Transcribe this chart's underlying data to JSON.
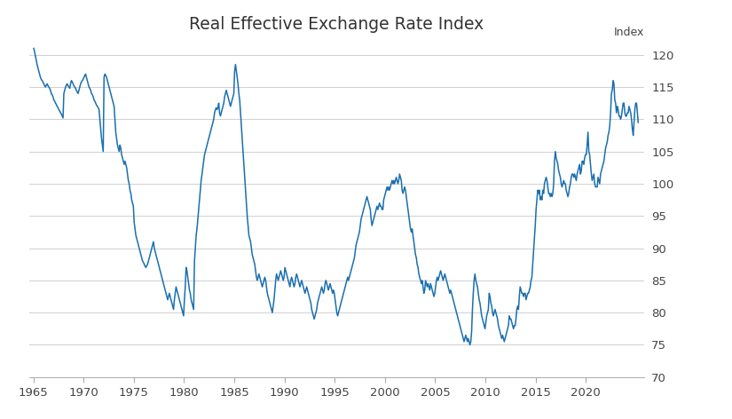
{
  "title": "Real Effective Exchange Rate Index",
  "ylabel": "Index",
  "line_color": "#1a6faf",
  "background_color": "#ffffff",
  "grid_color": "#d0d0d0",
  "ylim": [
    70,
    122
  ],
  "yticks": [
    70,
    75,
    80,
    85,
    90,
    95,
    100,
    105,
    110,
    115,
    120
  ],
  "xticks": [
    1965,
    1970,
    1975,
    1980,
    1985,
    1990,
    1995,
    2000,
    2005,
    2010,
    2015,
    2020
  ],
  "figsize": [
    8.25,
    4.72
  ],
  "dpi": 100,
  "data": {
    "1965-01": 121.0,
    "1965-02": 120.5,
    "1965-03": 119.8,
    "1965-04": 119.2,
    "1965-05": 118.5,
    "1965-06": 118.0,
    "1965-07": 117.5,
    "1965-08": 117.0,
    "1965-09": 116.5,
    "1965-10": 116.2,
    "1965-11": 116.0,
    "1965-12": 115.8,
    "1966-01": 115.5,
    "1966-02": 115.2,
    "1966-03": 115.0,
    "1966-04": 115.3,
    "1966-05": 115.5,
    "1966-06": 115.2,
    "1966-07": 115.0,
    "1966-08": 114.8,
    "1966-09": 114.5,
    "1966-10": 114.0,
    "1966-11": 113.8,
    "1966-12": 113.5,
    "1967-01": 113.0,
    "1967-02": 112.8,
    "1967-03": 112.5,
    "1967-04": 112.3,
    "1967-05": 112.0,
    "1967-06": 111.8,
    "1967-07": 111.5,
    "1967-08": 111.3,
    "1967-09": 111.0,
    "1967-10": 110.8,
    "1967-11": 110.5,
    "1967-12": 110.2,
    "1968-01": 114.0,
    "1968-02": 114.5,
    "1968-03": 115.0,
    "1968-04": 115.3,
    "1968-05": 115.5,
    "1968-06": 115.2,
    "1968-07": 115.0,
    "1968-08": 114.8,
    "1968-09": 115.5,
    "1968-10": 116.0,
    "1968-11": 115.8,
    "1968-12": 115.5,
    "1969-01": 115.2,
    "1969-02": 115.0,
    "1969-03": 114.8,
    "1969-04": 114.5,
    "1969-05": 114.2,
    "1969-06": 114.0,
    "1969-07": 114.5,
    "1969-08": 115.0,
    "1969-09": 115.5,
    "1969-10": 115.8,
    "1969-11": 116.0,
    "1969-12": 116.2,
    "1970-01": 116.5,
    "1970-02": 116.8,
    "1970-03": 117.0,
    "1970-04": 116.5,
    "1970-05": 116.0,
    "1970-06": 115.5,
    "1970-07": 115.0,
    "1970-08": 114.8,
    "1970-09": 114.5,
    "1970-10": 114.0,
    "1970-11": 113.8,
    "1970-12": 113.5,
    "1971-01": 113.0,
    "1971-02": 112.8,
    "1971-03": 112.5,
    "1971-04": 112.2,
    "1971-05": 112.0,
    "1971-06": 111.8,
    "1971-07": 111.5,
    "1971-08": 110.0,
    "1971-09": 108.5,
    "1971-10": 107.0,
    "1971-11": 106.0,
    "1971-12": 105.0,
    "1972-01": 116.5,
    "1972-02": 117.0,
    "1972-03": 116.8,
    "1972-04": 116.5,
    "1972-05": 116.0,
    "1972-06": 115.5,
    "1972-07": 115.0,
    "1972-08": 114.5,
    "1972-09": 114.0,
    "1972-10": 113.5,
    "1972-11": 113.0,
    "1972-12": 112.5,
    "1973-01": 112.0,
    "1973-02": 110.0,
    "1973-03": 108.0,
    "1973-04": 107.0,
    "1973-05": 106.0,
    "1973-06": 105.5,
    "1973-07": 105.0,
    "1973-08": 106.0,
    "1973-09": 105.5,
    "1973-10": 104.5,
    "1973-11": 104.0,
    "1973-12": 103.5,
    "1974-01": 103.0,
    "1974-02": 103.5,
    "1974-03": 103.0,
    "1974-04": 102.5,
    "1974-05": 101.5,
    "1974-06": 100.5,
    "1974-07": 100.0,
    "1974-08": 99.0,
    "1974-09": 98.5,
    "1974-10": 97.5,
    "1974-11": 97.0,
    "1974-12": 96.5,
    "1975-01": 94.0,
    "1975-02": 93.0,
    "1975-03": 92.0,
    "1975-04": 91.5,
    "1975-05": 91.0,
    "1975-06": 90.5,
    "1975-07": 90.0,
    "1975-08": 89.5,
    "1975-09": 89.0,
    "1975-10": 88.5,
    "1975-11": 88.0,
    "1975-12": 87.8,
    "1976-01": 87.5,
    "1976-02": 87.2,
    "1976-03": 87.0,
    "1976-04": 87.3,
    "1976-05": 87.5,
    "1976-06": 88.0,
    "1976-07": 88.5,
    "1976-08": 89.0,
    "1976-09": 89.5,
    "1976-10": 90.0,
    "1976-11": 90.5,
    "1976-12": 91.0,
    "1977-01": 90.0,
    "1977-02": 89.5,
    "1977-03": 89.0,
    "1977-04": 88.5,
    "1977-05": 88.0,
    "1977-06": 87.5,
    "1977-07": 87.0,
    "1977-08": 86.5,
    "1977-09": 86.0,
    "1977-10": 85.5,
    "1977-11": 85.0,
    "1977-12": 84.5,
    "1978-01": 84.0,
    "1978-02": 83.5,
    "1978-03": 83.0,
    "1978-04": 82.5,
    "1978-05": 82.0,
    "1978-06": 82.5,
    "1978-07": 83.0,
    "1978-08": 82.5,
    "1978-09": 82.0,
    "1978-10": 81.5,
    "1978-11": 81.0,
    "1978-12": 80.5,
    "1979-01": 82.0,
    "1979-02": 83.0,
    "1979-03": 84.0,
    "1979-04": 83.5,
    "1979-05": 83.0,
    "1979-06": 82.5,
    "1979-07": 82.0,
    "1979-08": 81.5,
    "1979-09": 81.0,
    "1979-10": 80.5,
    "1979-11": 80.0,
    "1979-12": 79.5,
    "1980-01": 82.0,
    "1980-02": 84.0,
    "1980-03": 87.0,
    "1980-04": 86.5,
    "1980-05": 85.5,
    "1980-06": 84.5,
    "1980-07": 83.5,
    "1980-08": 83.0,
    "1980-09": 82.0,
    "1980-10": 81.5,
    "1980-11": 81.0,
    "1980-12": 80.5,
    "1981-01": 88.0,
    "1981-02": 90.0,
    "1981-03": 92.0,
    "1981-04": 93.0,
    "1981-05": 94.5,
    "1981-06": 96.0,
    "1981-07": 97.5,
    "1981-08": 99.0,
    "1981-09": 100.5,
    "1981-10": 101.5,
    "1981-11": 102.5,
    "1981-12": 103.5,
    "1982-01": 104.5,
    "1982-02": 105.0,
    "1982-03": 105.5,
    "1982-04": 106.0,
    "1982-05": 106.5,
    "1982-06": 107.0,
    "1982-07": 107.5,
    "1982-08": 108.0,
    "1982-09": 108.5,
    "1982-10": 109.0,
    "1982-11": 109.5,
    "1982-12": 110.0,
    "1983-01": 111.0,
    "1983-02": 111.5,
    "1983-03": 111.8,
    "1983-04": 111.5,
    "1983-05": 111.8,
    "1983-06": 112.5,
    "1983-07": 111.0,
    "1983-08": 110.5,
    "1983-09": 111.0,
    "1983-10": 111.5,
    "1983-11": 112.0,
    "1983-12": 112.5,
    "1984-01": 113.5,
    "1984-02": 114.0,
    "1984-03": 114.5,
    "1984-04": 114.0,
    "1984-05": 113.5,
    "1984-06": 113.0,
    "1984-07": 112.5,
    "1984-08": 112.0,
    "1984-09": 112.5,
    "1984-10": 113.0,
    "1984-11": 113.5,
    "1984-12": 114.0,
    "1985-01": 117.5,
    "1985-02": 118.5,
    "1985-03": 117.5,
    "1985-04": 116.5,
    "1985-05": 115.5,
    "1985-06": 114.0,
    "1985-07": 113.0,
    "1985-08": 111.0,
    "1985-09": 109.0,
    "1985-10": 107.0,
    "1985-11": 105.0,
    "1985-12": 103.0,
    "1986-01": 101.0,
    "1986-02": 99.0,
    "1986-03": 97.0,
    "1986-04": 95.0,
    "1986-05": 93.5,
    "1986-06": 92.0,
    "1986-07": 91.5,
    "1986-08": 91.0,
    "1986-09": 90.0,
    "1986-10": 89.0,
    "1986-11": 88.5,
    "1986-12": 88.0,
    "1987-01": 87.5,
    "1987-02": 86.5,
    "1987-03": 85.5,
    "1987-04": 85.0,
    "1987-05": 85.5,
    "1987-06": 86.0,
    "1987-07": 85.5,
    "1987-08": 85.0,
    "1987-09": 84.5,
    "1987-10": 84.0,
    "1987-11": 84.5,
    "1987-12": 85.0,
    "1988-01": 85.5,
    "1988-02": 85.0,
    "1988-03": 84.0,
    "1988-04": 83.0,
    "1988-05": 82.5,
    "1988-06": 82.0,
    "1988-07": 81.5,
    "1988-08": 81.0,
    "1988-09": 80.5,
    "1988-10": 80.0,
    "1988-11": 81.0,
    "1988-12": 82.0,
    "1989-01": 83.5,
    "1989-02": 85.0,
    "1989-03": 86.0,
    "1989-04": 85.5,
    "1989-05": 85.0,
    "1989-06": 85.5,
    "1989-07": 86.0,
    "1989-08": 86.5,
    "1989-09": 86.0,
    "1989-10": 85.5,
    "1989-11": 85.0,
    "1989-12": 85.5,
    "1990-01": 87.0,
    "1990-02": 86.5,
    "1990-03": 86.0,
    "1990-04": 85.5,
    "1990-05": 85.0,
    "1990-06": 84.5,
    "1990-07": 84.0,
    "1990-08": 85.0,
    "1990-09": 85.5,
    "1990-10": 85.0,
    "1990-11": 84.5,
    "1990-12": 84.0,
    "1991-01": 84.5,
    "1991-02": 85.5,
    "1991-03": 86.0,
    "1991-04": 85.5,
    "1991-05": 85.0,
    "1991-06": 84.5,
    "1991-07": 84.0,
    "1991-08": 84.5,
    "1991-09": 85.0,
    "1991-10": 84.5,
    "1991-11": 84.0,
    "1991-12": 83.5,
    "1992-01": 83.0,
    "1992-02": 83.5,
    "1992-03": 84.0,
    "1992-04": 83.5,
    "1992-05": 83.0,
    "1992-06": 82.5,
    "1992-07": 82.0,
    "1992-08": 81.5,
    "1992-09": 80.5,
    "1992-10": 80.0,
    "1992-11": 79.5,
    "1992-12": 79.0,
    "1993-01": 79.5,
    "1993-02": 80.0,
    "1993-03": 80.5,
    "1993-04": 81.5,
    "1993-05": 82.0,
    "1993-06": 82.5,
    "1993-07": 83.0,
    "1993-08": 83.5,
    "1993-09": 84.0,
    "1993-10": 83.5,
    "1993-11": 83.0,
    "1993-12": 83.5,
    "1994-01": 84.5,
    "1994-02": 85.0,
    "1994-03": 84.5,
    "1994-04": 84.0,
    "1994-05": 83.5,
    "1994-06": 84.0,
    "1994-07": 84.5,
    "1994-08": 84.0,
    "1994-09": 83.5,
    "1994-10": 83.0,
    "1994-11": 83.5,
    "1994-12": 83.0,
    "1995-01": 82.0,
    "1995-02": 81.0,
    "1995-03": 80.0,
    "1995-04": 79.5,
    "1995-05": 80.0,
    "1995-06": 80.5,
    "1995-07": 81.0,
    "1995-08": 81.5,
    "1995-09": 82.0,
    "1995-10": 82.5,
    "1995-11": 83.0,
    "1995-12": 83.5,
    "1996-01": 84.0,
    "1996-02": 84.5,
    "1996-03": 85.0,
    "1996-04": 85.5,
    "1996-05": 85.0,
    "1996-06": 85.5,
    "1996-07": 86.0,
    "1996-08": 86.5,
    "1996-09": 87.0,
    "1996-10": 87.5,
    "1996-11": 88.0,
    "1996-12": 88.5,
    "1997-01": 89.5,
    "1997-02": 90.5,
    "1997-03": 91.0,
    "1997-04": 91.5,
    "1997-05": 92.0,
    "1997-06": 92.5,
    "1997-07": 93.5,
    "1997-08": 94.5,
    "1997-09": 95.0,
    "1997-10": 95.5,
    "1997-11": 96.0,
    "1997-12": 96.5,
    "1998-01": 97.0,
    "1998-02": 97.5,
    "1998-03": 98.0,
    "1998-04": 97.5,
    "1998-05": 97.0,
    "1998-06": 96.5,
    "1998-07": 96.0,
    "1998-08": 94.5,
    "1998-09": 93.5,
    "1998-10": 94.0,
    "1998-11": 94.5,
    "1998-12": 95.0,
    "1999-01": 95.5,
    "1999-02": 96.0,
    "1999-03": 96.5,
    "1999-04": 96.0,
    "1999-05": 96.5,
    "1999-06": 97.0,
    "1999-07": 96.5,
    "1999-08": 96.5,
    "1999-09": 96.0,
    "1999-10": 96.0,
    "1999-11": 97.5,
    "1999-12": 98.0,
    "2000-01": 98.5,
    "2000-02": 99.0,
    "2000-03": 99.5,
    "2000-04": 99.0,
    "2000-05": 99.5,
    "2000-06": 99.0,
    "2000-07": 99.5,
    "2000-08": 100.0,
    "2000-09": 100.5,
    "2000-10": 100.0,
    "2000-11": 100.5,
    "2000-12": 100.0,
    "2001-01": 100.5,
    "2001-02": 101.0,
    "2001-03": 100.5,
    "2001-04": 100.0,
    "2001-05": 100.5,
    "2001-06": 101.5,
    "2001-07": 101.0,
    "2001-08": 100.5,
    "2001-09": 99.0,
    "2001-10": 98.5,
    "2001-11": 99.0,
    "2001-12": 99.5,
    "2002-01": 99.0,
    "2002-02": 98.0,
    "2002-03": 97.0,
    "2002-04": 96.0,
    "2002-05": 95.0,
    "2002-06": 94.0,
    "2002-07": 93.0,
    "2002-08": 92.5,
    "2002-09": 93.0,
    "2002-10": 92.0,
    "2002-11": 91.0,
    "2002-12": 90.0,
    "2003-01": 89.0,
    "2003-02": 88.5,
    "2003-03": 87.5,
    "2003-04": 87.0,
    "2003-05": 86.0,
    "2003-06": 85.5,
    "2003-07": 85.0,
    "2003-08": 84.5,
    "2003-09": 85.0,
    "2003-10": 84.0,
    "2003-11": 83.0,
    "2003-12": 83.5,
    "2004-01": 85.0,
    "2004-02": 84.5,
    "2004-03": 84.0,
    "2004-04": 84.5,
    "2004-05": 84.0,
    "2004-06": 83.5,
    "2004-07": 84.5,
    "2004-08": 84.0,
    "2004-09": 83.5,
    "2004-10": 83.0,
    "2004-11": 82.5,
    "2004-12": 83.0,
    "2005-01": 84.0,
    "2005-02": 85.0,
    "2005-03": 85.5,
    "2005-04": 85.0,
    "2005-05": 85.5,
    "2005-06": 86.0,
    "2005-07": 86.5,
    "2005-08": 86.0,
    "2005-09": 85.5,
    "2005-10": 85.0,
    "2005-11": 85.5,
    "2005-12": 86.0,
    "2006-01": 85.5,
    "2006-02": 85.0,
    "2006-03": 84.5,
    "2006-04": 84.0,
    "2006-05": 83.5,
    "2006-06": 83.0,
    "2006-07": 83.5,
    "2006-08": 83.0,
    "2006-09": 82.5,
    "2006-10": 82.0,
    "2006-11": 81.5,
    "2006-12": 81.0,
    "2007-01": 80.5,
    "2007-02": 80.0,
    "2007-03": 79.5,
    "2007-04": 79.0,
    "2007-05": 78.5,
    "2007-06": 78.0,
    "2007-07": 77.5,
    "2007-08": 77.0,
    "2007-09": 76.5,
    "2007-10": 76.0,
    "2007-11": 75.5,
    "2007-12": 76.0,
    "2008-01": 76.5,
    "2008-02": 76.0,
    "2008-03": 75.5,
    "2008-04": 76.0,
    "2008-05": 75.5,
    "2008-06": 75.0,
    "2008-07": 75.5,
    "2008-08": 77.0,
    "2008-09": 80.5,
    "2008-10": 83.0,
    "2008-11": 85.0,
    "2008-12": 86.0,
    "2009-01": 85.0,
    "2009-02": 84.5,
    "2009-03": 84.0,
    "2009-04": 83.0,
    "2009-05": 82.0,
    "2009-06": 81.5,
    "2009-07": 80.5,
    "2009-08": 79.5,
    "2009-09": 79.0,
    "2009-10": 78.5,
    "2009-11": 78.0,
    "2009-12": 77.5,
    "2010-01": 78.5,
    "2010-02": 79.5,
    "2010-03": 80.0,
    "2010-04": 80.5,
    "2010-05": 83.0,
    "2010-06": 82.5,
    "2010-07": 81.5,
    "2010-08": 81.0,
    "2010-09": 80.0,
    "2010-10": 79.5,
    "2010-11": 80.0,
    "2010-12": 80.5,
    "2011-01": 80.0,
    "2011-02": 79.5,
    "2011-03": 79.0,
    "2011-04": 78.0,
    "2011-05": 77.5,
    "2011-06": 77.0,
    "2011-07": 76.5,
    "2011-08": 76.0,
    "2011-09": 76.5,
    "2011-10": 76.0,
    "2011-11": 75.5,
    "2011-12": 76.0,
    "2012-01": 76.5,
    "2012-02": 77.0,
    "2012-03": 77.5,
    "2012-04": 78.0,
    "2012-05": 79.5,
    "2012-06": 79.0,
    "2012-07": 79.0,
    "2012-08": 78.5,
    "2012-09": 78.0,
    "2012-10": 77.5,
    "2012-11": 78.0,
    "2012-12": 78.0,
    "2013-01": 79.0,
    "2013-02": 80.5,
    "2013-03": 81.0,
    "2013-04": 80.5,
    "2013-05": 82.5,
    "2013-06": 84.0,
    "2013-07": 83.5,
    "2013-08": 83.0,
    "2013-09": 83.0,
    "2013-10": 82.5,
    "2013-11": 83.0,
    "2013-12": 83.0,
    "2014-01": 82.0,
    "2014-02": 82.5,
    "2014-03": 83.0,
    "2014-04": 83.0,
    "2014-05": 83.5,
    "2014-06": 84.0,
    "2014-07": 85.0,
    "2014-08": 85.5,
    "2014-09": 87.5,
    "2014-10": 89.5,
    "2014-11": 91.5,
    "2014-12": 93.5,
    "2015-01": 96.0,
    "2015-02": 97.5,
    "2015-03": 99.0,
    "2015-04": 98.5,
    "2015-05": 99.0,
    "2015-06": 97.5,
    "2015-07": 98.0,
    "2015-08": 97.5,
    "2015-09": 99.0,
    "2015-10": 98.5,
    "2015-11": 100.0,
    "2015-12": 100.5,
    "2016-01": 101.0,
    "2016-02": 100.5,
    "2016-03": 99.5,
    "2016-04": 98.5,
    "2016-05": 98.5,
    "2016-06": 98.0,
    "2016-07": 98.5,
    "2016-08": 98.0,
    "2016-09": 98.5,
    "2016-10": 100.0,
    "2016-11": 103.5,
    "2016-12": 105.0,
    "2017-01": 104.0,
    "2017-02": 103.5,
    "2017-03": 103.0,
    "2017-04": 102.0,
    "2017-05": 101.5,
    "2017-06": 101.0,
    "2017-07": 100.0,
    "2017-08": 99.5,
    "2017-09": 100.0,
    "2017-10": 100.5,
    "2017-11": 100.0,
    "2017-12": 100.0,
    "2018-01": 99.0,
    "2018-02": 98.5,
    "2018-03": 98.0,
    "2018-04": 98.5,
    "2018-05": 99.5,
    "2018-06": 100.0,
    "2018-07": 101.0,
    "2018-08": 101.5,
    "2018-09": 101.5,
    "2018-10": 101.0,
    "2018-11": 101.5,
    "2018-12": 101.0,
    "2019-01": 100.5,
    "2019-02": 101.5,
    "2019-03": 102.0,
    "2019-04": 102.5,
    "2019-05": 103.0,
    "2019-06": 101.5,
    "2019-07": 102.0,
    "2019-08": 103.5,
    "2019-09": 103.5,
    "2019-10": 103.0,
    "2019-11": 104.0,
    "2019-12": 104.5,
    "2020-01": 104.5,
    "2020-02": 106.0,
    "2020-03": 108.0,
    "2020-04": 105.0,
    "2020-05": 104.5,
    "2020-06": 103.0,
    "2020-07": 101.5,
    "2020-08": 100.5,
    "2020-09": 101.0,
    "2020-10": 101.5,
    "2020-11": 100.0,
    "2020-12": 99.5,
    "2021-01": 99.5,
    "2021-02": 99.5,
    "2021-03": 101.0,
    "2021-04": 100.5,
    "2021-05": 100.0,
    "2021-06": 101.5,
    "2021-07": 102.0,
    "2021-08": 102.5,
    "2021-09": 103.0,
    "2021-10": 103.5,
    "2021-11": 104.5,
    "2021-12": 105.5,
    "2022-01": 106.0,
    "2022-02": 106.5,
    "2022-03": 107.5,
    "2022-04": 108.0,
    "2022-05": 109.0,
    "2022-06": 111.0,
    "2022-07": 114.0,
    "2022-08": 114.5,
    "2022-09": 116.0,
    "2022-10": 115.5,
    "2022-11": 113.0,
    "2022-12": 112.5,
    "2023-01": 111.0,
    "2023-02": 112.0,
    "2023-03": 111.5,
    "2023-04": 110.5,
    "2023-05": 110.5,
    "2023-06": 110.0,
    "2023-07": 110.5,
    "2023-08": 111.5,
    "2023-09": 112.5,
    "2023-10": 112.5,
    "2023-11": 111.0,
    "2023-12": 110.5,
    "2024-01": 110.5,
    "2024-02": 111.0,
    "2024-03": 111.0,
    "2024-04": 112.0,
    "2024-05": 111.5,
    "2024-06": 111.0,
    "2024-07": 110.0,
    "2024-08": 108.5,
    "2024-09": 107.5,
    "2024-10": 109.5,
    "2024-11": 111.5,
    "2024-12": 112.5,
    "2025-01": 112.5,
    "2025-02": 111.0,
    "2025-03": 109.5
  }
}
